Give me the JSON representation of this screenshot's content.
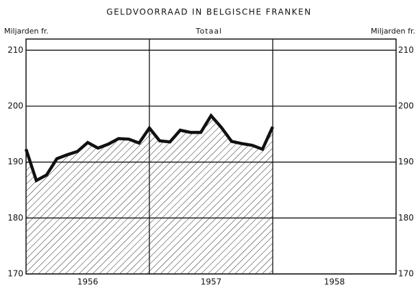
{
  "chart_data": {
    "type": "area",
    "title": "GELDVOORRAAD IN BELGISCHE FRANKEN",
    "subtitle": "Totaal",
    "y_label_left": "Miljarden fr.",
    "y_label_right": "Miljarden fr.",
    "categories": [
      "1956",
      "1957",
      "1958"
    ],
    "x": [
      0,
      1,
      2,
      3,
      4,
      5,
      6,
      7,
      8,
      9,
      10,
      11,
      12,
      13,
      14,
      15,
      16,
      17,
      18,
      19,
      20,
      21,
      22,
      23,
      24
    ],
    "values": [
      192.3,
      186.7,
      187.7,
      190.6,
      191.3,
      191.9,
      193.5,
      192.5,
      193.2,
      194.2,
      194.1,
      193.4,
      196.1,
      193.8,
      193.6,
      195.7,
      195.3,
      195.3,
      198.3,
      196.2,
      193.7,
      193.3,
      193.0,
      192.3,
      196.3
    ],
    "color": "#111111",
    "xlim": [
      0,
      36
    ],
    "ylim": [
      170,
      212
    ],
    "yticks": [
      170,
      180,
      190,
      200,
      210
    ],
    "grid": true
  }
}
